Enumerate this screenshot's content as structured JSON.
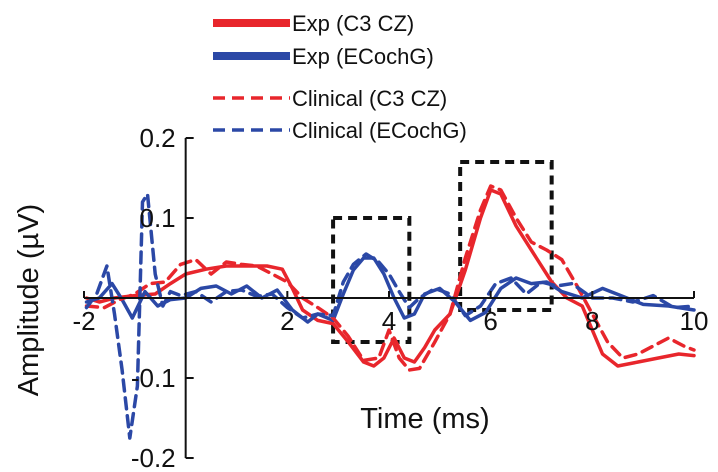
{
  "chart_data": {
    "type": "line",
    "xlabel": "Time (ms)",
    "ylabel": "Amplitude (µV)",
    "xlim": [
      -2,
      10
    ],
    "ylim": [
      -0.2,
      0.2
    ],
    "x_ticks": [
      -2,
      2,
      4,
      6,
      8,
      10
    ],
    "x_tick_labels": [
      "-2",
      "2",
      "4",
      "6",
      "8",
      "10"
    ],
    "y_ticks": [
      -0.2,
      -0.1,
      0.1,
      0.2
    ],
    "y_tick_labels": [
      "-0.2",
      "-0.1",
      "0.1",
      "0.2"
    ],
    "grid": false,
    "legend_position": "top",
    "colors": {
      "red": "#e8262c",
      "blue": "#2b48a6",
      "box": "#111111"
    },
    "legend": [
      {
        "label": "Exp (C3 CZ)",
        "color": "#e8262c",
        "dash": false
      },
      {
        "label": "Exp (ECochG)",
        "color": "#2b48a6",
        "dash": false
      },
      {
        "label": "Clinical (C3 CZ)",
        "color": "#e8262c",
        "dash": true
      },
      {
        "label": "Clinical (ECochG)",
        "color": "#2b48a6",
        "dash": true
      }
    ],
    "boxes": [
      {
        "x0": 2.9,
        "x1": 4.4,
        "y0": -0.055,
        "y1": 0.1
      },
      {
        "x0": 5.4,
        "x1": 7.2,
        "y0": -0.015,
        "y1": 0.17
      }
    ],
    "series": [
      {
        "name": "Exp (C3 CZ)",
        "color": "#e8262c",
        "dash": false,
        "points": [
          [
            -1.95,
            0.0
          ],
          [
            -1.7,
            -0.005
          ],
          [
            -1.4,
            0.0
          ],
          [
            -1.0,
            0.003
          ],
          [
            -0.6,
            0.005
          ],
          [
            -0.3,
            0.018
          ],
          [
            0.0,
            0.03
          ],
          [
            0.4,
            0.036
          ],
          [
            0.8,
            0.04
          ],
          [
            1.2,
            0.04
          ],
          [
            1.6,
            0.04
          ],
          [
            1.9,
            0.036
          ],
          [
            2.1,
            0.012
          ],
          [
            2.3,
            -0.015
          ],
          [
            2.6,
            -0.028
          ],
          [
            2.9,
            -0.032
          ],
          [
            3.2,
            -0.055
          ],
          [
            3.5,
            -0.08
          ],
          [
            3.7,
            -0.085
          ],
          [
            3.9,
            -0.075
          ],
          [
            4.1,
            -0.05
          ],
          [
            4.3,
            -0.075
          ],
          [
            4.5,
            -0.08
          ],
          [
            4.7,
            -0.062
          ],
          [
            4.9,
            -0.04
          ],
          [
            5.2,
            -0.02
          ],
          [
            5.5,
            0.035
          ],
          [
            5.8,
            0.1
          ],
          [
            6.0,
            0.135
          ],
          [
            6.2,
            0.13
          ],
          [
            6.5,
            0.09
          ],
          [
            6.9,
            0.05
          ],
          [
            7.2,
            0.02
          ],
          [
            7.5,
            0.0
          ],
          [
            7.8,
            -0.01
          ],
          [
            8.0,
            -0.04
          ],
          [
            8.2,
            -0.07
          ],
          [
            8.5,
            -0.085
          ],
          [
            8.9,
            -0.08
          ],
          [
            9.3,
            -0.075
          ],
          [
            9.7,
            -0.07
          ],
          [
            10.0,
            -0.072
          ]
        ]
      },
      {
        "name": "Exp (ECochG)",
        "color": "#2b48a6",
        "dash": false,
        "points": [
          [
            -1.95,
            -0.005
          ],
          [
            -1.7,
            0.0
          ],
          [
            -1.45,
            0.018
          ],
          [
            -1.25,
            -0.002
          ],
          [
            -1.05,
            -0.025
          ],
          [
            -0.8,
            0.008
          ],
          [
            -0.55,
            -0.01
          ],
          [
            -0.3,
            -0.002
          ],
          [
            0.0,
            0.0
          ],
          [
            0.3,
            0.012
          ],
          [
            0.6,
            0.015
          ],
          [
            0.9,
            0.005
          ],
          [
            1.2,
            0.015
          ],
          [
            1.5,
            0.0
          ],
          [
            1.8,
            0.01
          ],
          [
            2.1,
            -0.015
          ],
          [
            2.4,
            -0.03
          ],
          [
            2.6,
            -0.02
          ],
          [
            2.9,
            -0.028
          ],
          [
            3.1,
            0.005
          ],
          [
            3.3,
            0.035
          ],
          [
            3.5,
            0.05
          ],
          [
            3.7,
            0.05
          ],
          [
            3.9,
            0.03
          ],
          [
            4.1,
            0.0
          ],
          [
            4.3,
            -0.025
          ],
          [
            4.5,
            -0.02
          ],
          [
            4.7,
            0.005
          ],
          [
            5.0,
            0.012
          ],
          [
            5.3,
            -0.005
          ],
          [
            5.6,
            -0.028
          ],
          [
            5.9,
            -0.018
          ],
          [
            6.2,
            0.012
          ],
          [
            6.5,
            0.025
          ],
          [
            6.8,
            0.018
          ],
          [
            7.1,
            0.02
          ],
          [
            7.4,
            0.008
          ],
          [
            7.8,
            0.0
          ],
          [
            8.2,
            0.012
          ],
          [
            8.6,
            0.002
          ],
          [
            9.0,
            -0.008
          ],
          [
            9.5,
            -0.01
          ],
          [
            10.0,
            -0.015
          ]
        ]
      },
      {
        "name": "Clinical (C3 CZ)",
        "color": "#e8262c",
        "dash": true,
        "points": [
          [
            -1.95,
            -0.01
          ],
          [
            -1.6,
            -0.012
          ],
          [
            -1.3,
            -0.002
          ],
          [
            -1.0,
            0.005
          ],
          [
            -0.7,
            0.018
          ],
          [
            -0.4,
            0.02
          ],
          [
            -0.1,
            0.042
          ],
          [
            0.2,
            0.048
          ],
          [
            0.5,
            0.03
          ],
          [
            0.8,
            0.045
          ],
          [
            1.1,
            0.042
          ],
          [
            1.4,
            0.04
          ],
          [
            1.7,
            0.03
          ],
          [
            2.0,
            0.02
          ],
          [
            2.3,
            0.0
          ],
          [
            2.6,
            -0.012
          ],
          [
            2.9,
            -0.025
          ],
          [
            3.2,
            -0.048
          ],
          [
            3.5,
            -0.078
          ],
          [
            3.8,
            -0.075
          ],
          [
            4.0,
            -0.04
          ],
          [
            4.2,
            -0.075
          ],
          [
            4.4,
            -0.09
          ],
          [
            4.6,
            -0.088
          ],
          [
            4.9,
            -0.055
          ],
          [
            5.2,
            -0.02
          ],
          [
            5.5,
            0.05
          ],
          [
            5.8,
            0.11
          ],
          [
            6.0,
            0.14
          ],
          [
            6.2,
            0.135
          ],
          [
            6.5,
            0.1
          ],
          [
            6.8,
            0.07
          ],
          [
            7.1,
            0.06
          ],
          [
            7.4,
            0.048
          ],
          [
            7.7,
            0.015
          ],
          [
            8.0,
            -0.02
          ],
          [
            8.3,
            -0.055
          ],
          [
            8.6,
            -0.075
          ],
          [
            8.9,
            -0.07
          ],
          [
            9.2,
            -0.06
          ],
          [
            9.5,
            -0.05
          ],
          [
            9.8,
            -0.06
          ],
          [
            10.0,
            -0.065
          ]
        ]
      },
      {
        "name": "Clinical (ECochG)",
        "color": "#2b48a6",
        "dash": true,
        "points": [
          [
            -1.95,
            -0.012
          ],
          [
            -1.75,
            0.005
          ],
          [
            -1.55,
            0.04
          ],
          [
            -1.4,
            -0.02
          ],
          [
            -1.25,
            -0.09
          ],
          [
            -1.1,
            -0.175
          ],
          [
            -0.95,
            -0.11
          ],
          [
            -0.85,
            0.12
          ],
          [
            -0.75,
            0.13
          ],
          [
            -0.6,
            0.03
          ],
          [
            -0.45,
            -0.01
          ],
          [
            -0.3,
            0.008
          ],
          [
            -0.1,
            0.003
          ],
          [
            0.2,
            0.008
          ],
          [
            0.5,
            -0.005
          ],
          [
            0.8,
            0.008
          ],
          [
            1.1,
            0.01
          ],
          [
            1.4,
            0.002
          ],
          [
            1.7,
            0.005
          ],
          [
            2.0,
            -0.012
          ],
          [
            2.3,
            -0.025
          ],
          [
            2.6,
            -0.02
          ],
          [
            2.9,
            -0.022
          ],
          [
            3.1,
            0.02
          ],
          [
            3.3,
            0.042
          ],
          [
            3.55,
            0.055
          ],
          [
            3.8,
            0.045
          ],
          [
            4.0,
            0.03
          ],
          [
            4.2,
            0.008
          ],
          [
            4.4,
            -0.012
          ],
          [
            4.6,
            0.0
          ],
          [
            4.9,
            0.012
          ],
          [
            5.2,
            0.005
          ],
          [
            5.5,
            -0.022
          ],
          [
            5.8,
            -0.01
          ],
          [
            6.1,
            0.018
          ],
          [
            6.4,
            0.025
          ],
          [
            6.7,
            0.005
          ],
          [
            7.0,
            0.02
          ],
          [
            7.3,
            0.015
          ],
          [
            7.6,
            0.018
          ],
          [
            8.0,
            0.0
          ],
          [
            8.4,
            0.0
          ],
          [
            8.8,
            -0.005
          ],
          [
            9.2,
            0.003
          ],
          [
            9.6,
            -0.012
          ],
          [
            10.0,
            -0.01
          ]
        ]
      }
    ]
  }
}
